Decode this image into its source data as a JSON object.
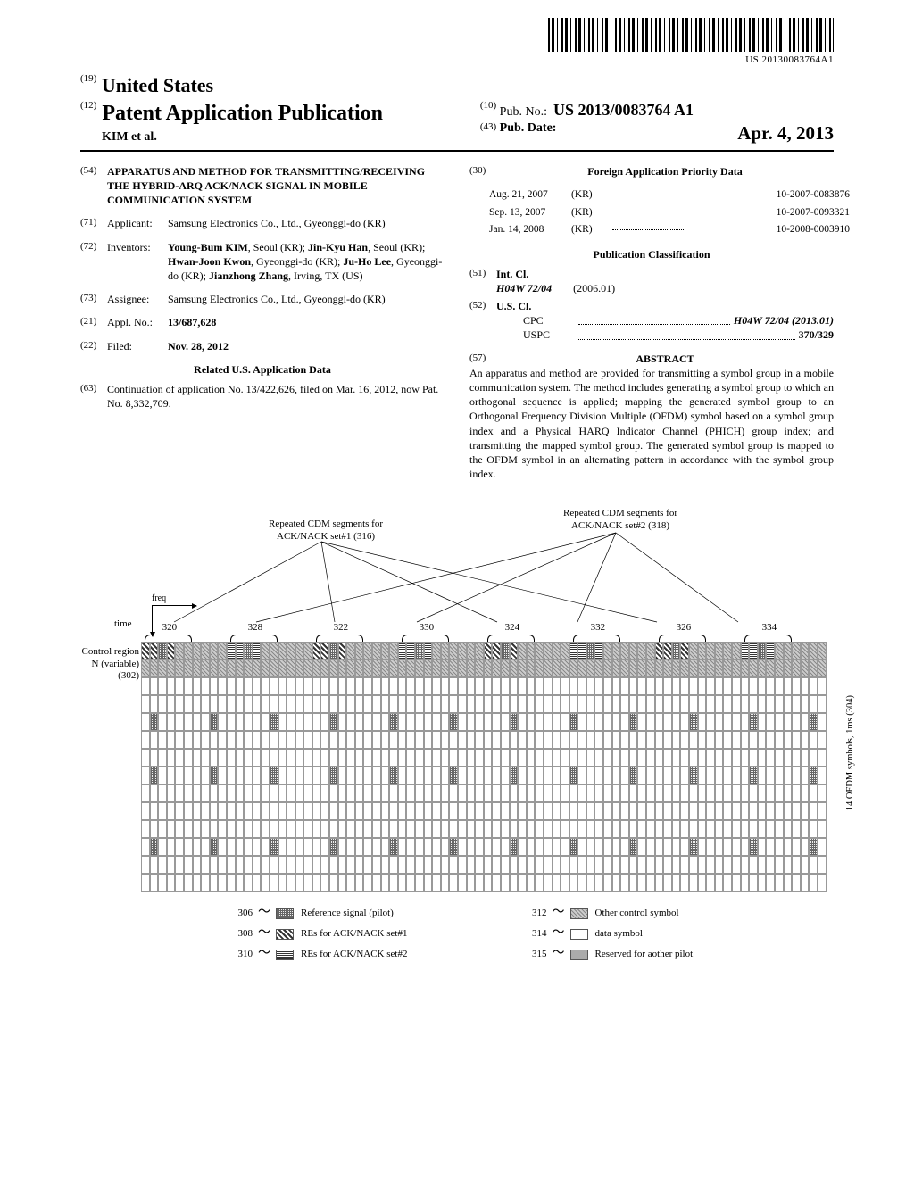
{
  "barcode_text": "US 20130083764A1",
  "header": {
    "us": {
      "code": "(19)",
      "text": "United States"
    },
    "pub": {
      "code": "(12)",
      "text": "Patent Application Publication"
    },
    "author": "KIM et al.",
    "pubno": {
      "code": "(10)",
      "label": "Pub. No.:",
      "value": "US 2013/0083764 A1"
    },
    "pubdate": {
      "code": "(43)",
      "label": "Pub. Date:",
      "value": "Apr. 4, 2013"
    }
  },
  "left_col": {
    "title": {
      "code": "(54)",
      "label": "",
      "value": "APPARATUS AND METHOD FOR TRANSMITTING/RECEIVING THE HYBRID-ARQ ACK/NACK SIGNAL IN MOBILE COMMUNICATION SYSTEM"
    },
    "applicant": {
      "code": "(71)",
      "label": "Applicant:",
      "value": "Samsung Electronics Co., Ltd., Gyeonggi-do (KR)"
    },
    "inventors": {
      "code": "(72)",
      "label": "Inventors:",
      "value": "Young-Bum KIM, Seoul (KR); Jin-Kyu Han, Seoul (KR); Hwan-Joon Kwon, Gyeonggi-do (KR); Ju-Ho Lee, Gyeonggi-do (KR); Jianzhong Zhang, Irving, TX (US)"
    },
    "assignee": {
      "code": "(73)",
      "label": "Assignee:",
      "value": "Samsung Electronics Co., Ltd., Gyeonggi-do (KR)"
    },
    "applno": {
      "code": "(21)",
      "label": "Appl. No.:",
      "value": "13/687,628"
    },
    "filed": {
      "code": "(22)",
      "label": "Filed:",
      "value": "Nov. 28, 2012"
    },
    "related_head": "Related U.S. Application Data",
    "continuation": {
      "code": "(63)",
      "value": "Continuation of application No. 13/422,626, filed on Mar. 16, 2012, now Pat. No. 8,332,709."
    }
  },
  "right_col": {
    "foreign_head": {
      "code": "(30)",
      "text": "Foreign Application Priority Data"
    },
    "priority": [
      {
        "date": "Aug. 21, 2007",
        "country": "(KR)",
        "num": "10-2007-0083876"
      },
      {
        "date": "Sep. 13, 2007",
        "country": "(KR)",
        "num": "10-2007-0093321"
      },
      {
        "date": "Jan. 14, 2008",
        "country": "(KR)",
        "num": "10-2008-0003910"
      }
    ],
    "pubclass_head": "Publication Classification",
    "intcl": {
      "code": "(51)",
      "label": "Int. Cl.",
      "class": "H04W 72/04",
      "year": "(2006.01)"
    },
    "uscl": {
      "code": "(52)",
      "label": "U.S. Cl.",
      "cpc": {
        "lbl": "CPC",
        "val": "H04W 72/04 (2013.01)"
      },
      "uspc": {
        "lbl": "USPC",
        "val": "370/329"
      }
    },
    "abstract": {
      "code": "(57)",
      "head": "ABSTRACT",
      "text": "An apparatus and method are provided for transmitting a symbol group in a mobile communication system. The method includes generating a symbol group to which an orthogonal sequence is applied; mapping the generated symbol group to an Orthogonal Frequency Division Multiple (OFDM) symbol based on a symbol group index and a Physical HARQ Indicator Channel (PHICH) group index; and transmitting the mapped symbol group. The generated symbol group is mapped to the OFDM symbol in an alternating pattern in accordance with the symbol group index."
    }
  },
  "figure": {
    "top_label_1": "Repeated CDM segments for\nACK/NACK set#1 (316)",
    "top_label_2": "Repeated CDM segments for\nACK/NACK set#2 (318)",
    "freq_label": "freq",
    "time_label": "time",
    "control_label": "Control region\nN (variable)\n(302)",
    "segment_nums": [
      "320",
      "328",
      "322",
      "330",
      "324",
      "332",
      "326",
      "334"
    ],
    "side_label": "14 OFDM symbols, 1ms (304)",
    "legend": [
      {
        "num": "306",
        "type": "pilot",
        "text": "Reference signal (pilot)"
      },
      {
        "num": "308",
        "type": "set1",
        "text": "REs for ACK/NACK set#1"
      },
      {
        "num": "310",
        "type": "set2",
        "text": "REs for ACK/NACK set#2"
      },
      {
        "num": "312",
        "type": "ctrl",
        "text": "Other control symbol"
      },
      {
        "num": "314",
        "type": "",
        "text": "data symbol"
      },
      {
        "num": "315",
        "type": "reserved",
        "text": "Reserved for aother pilot"
      }
    ]
  }
}
